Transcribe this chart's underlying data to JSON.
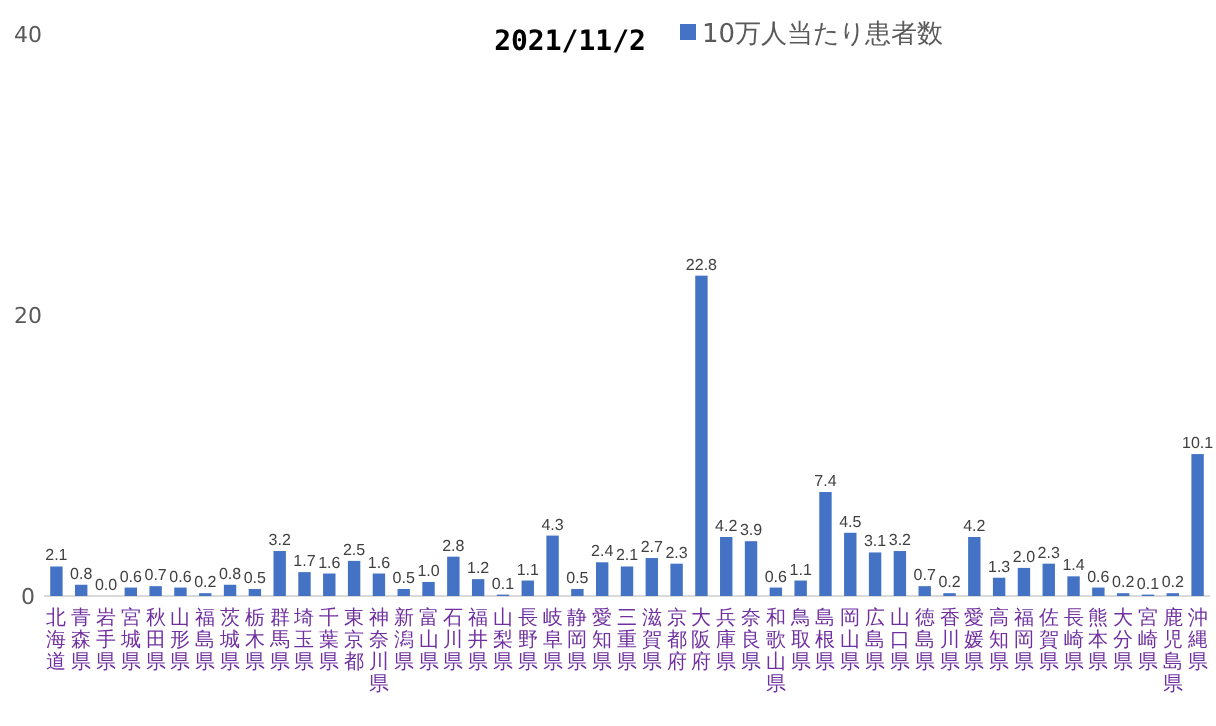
{
  "chart_data": {
    "type": "bar",
    "title": "2021/11/2",
    "categories": [
      "北海道",
      "青森県",
      "岩手県",
      "宮城県",
      "秋田県",
      "山形県",
      "福島県",
      "茨城県",
      "栃木県",
      "群馬県",
      "埼玉県",
      "千葉県",
      "東京都",
      "神奈川県",
      "新潟県",
      "富山県",
      "石川県",
      "福井県",
      "山梨県",
      "長野県",
      "岐阜県",
      "静岡県",
      "愛知県",
      "三重県",
      "滋賀県",
      "京都府",
      "大阪府",
      "兵庫県",
      "奈良県",
      "和歌山県",
      "鳥取県",
      "島根県",
      "岡山県",
      "広島県",
      "山口県",
      "徳島県",
      "香川県",
      "愛媛県",
      "高知県",
      "福岡県",
      "佐賀県",
      "長崎県",
      "熊本県",
      "大分県",
      "宮崎県",
      "鹿児島県",
      "沖縄県"
    ],
    "series": [
      {
        "name": "10万人当たり患者数",
        "color": "#4472c4",
        "values": [
          2.1,
          0.8,
          0.0,
          0.6,
          0.7,
          0.6,
          0.2,
          0.8,
          0.5,
          3.2,
          1.7,
          1.6,
          2.5,
          1.6,
          0.5,
          1.0,
          2.8,
          1.2,
          0.1,
          1.1,
          4.3,
          0.5,
          2.4,
          2.1,
          2.7,
          2.3,
          22.8,
          4.2,
          3.9,
          0.6,
          1.1,
          7.4,
          4.5,
          3.1,
          3.2,
          0.7,
          0.2,
          4.2,
          1.3,
          2.0,
          2.3,
          1.4,
          0.6,
          0.2,
          0.1,
          0.2,
          10.1
        ]
      }
    ],
    "value_labels": [
      "2.1",
      "0.8",
      "0.0",
      "0.6",
      "0.7",
      "0.6",
      "0.2",
      "0.8",
      "0.5",
      "3.2",
      "1.7",
      "1.6",
      "2.5",
      "1.6",
      "0.5",
      "1.0",
      "2.8",
      "1.2",
      "0.1",
      "1.1",
      "4.3",
      "0.5",
      "2.4",
      "2.1",
      "2.7",
      "2.3",
      "22.8",
      "4.2",
      "3.9",
      "0.6",
      "1.1",
      "7.4",
      "4.5",
      "3.1",
      "3.2",
      "0.7",
      "0.2",
      "4.2",
      "1.3",
      "2.0",
      "2.3",
      "1.4",
      "0.6",
      "0.2",
      "0.1",
      "0.2",
      "10.1"
    ],
    "ylim": [
      0,
      40
    ],
    "yticks": [
      0,
      20,
      40
    ],
    "legend": "top"
  }
}
